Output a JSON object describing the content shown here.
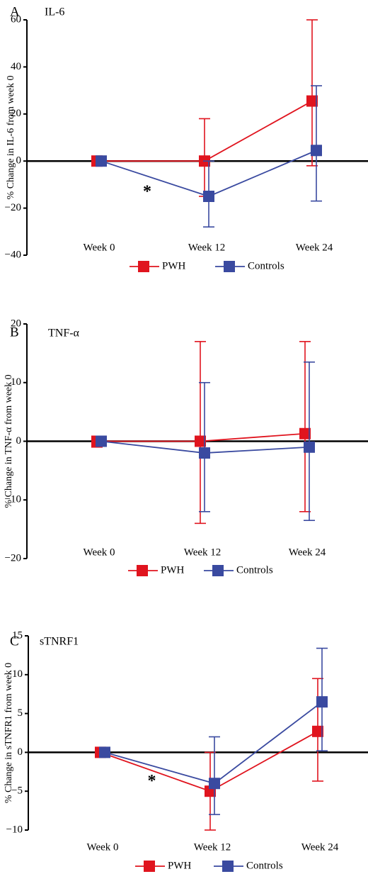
{
  "chart_data": [
    {
      "type": "line",
      "panel_letter": "A",
      "title": "IL-6",
      "ylabel": "% Change in IL-6 from week 0",
      "categories": [
        "Week 0",
        "Week 12",
        "Week 24"
      ],
      "yticks": [
        60,
        40,
        20,
        0,
        -20,
        -40
      ],
      "ylim": [
        -40,
        60
      ],
      "series": [
        {
          "name": "PWH",
          "color": "#e0141e",
          "values": [
            0,
            0,
            25.5
          ],
          "err_low": [
            0,
            -15,
            -2
          ],
          "err_high": [
            0,
            18,
            60
          ]
        },
        {
          "name": "Controls",
          "color": "#3a4aa0",
          "values": [
            0,
            -15,
            4.5
          ],
          "err_low": [
            0,
            -28,
            -17
          ],
          "err_high": [
            0,
            0,
            32
          ]
        }
      ],
      "annotation": {
        "text": "*",
        "between": [
          0,
          1
        ]
      },
      "zero_line": true,
      "legend": "bottom"
    },
    {
      "type": "line",
      "panel_letter": "B",
      "title": "TNF-α",
      "ylabel": "% Change in TNF-α from week 0",
      "categories": [
        "Week 0",
        "Week 12",
        "Week 24"
      ],
      "yticks": [
        20,
        10,
        0,
        -10,
        -20
      ],
      "ylim": [
        -20,
        20
      ],
      "series": [
        {
          "name": "PWH",
          "color": "#e0141e",
          "values": [
            0,
            0,
            1.3
          ],
          "err_low": [
            -1,
            -14,
            -12
          ],
          "err_high": [
            0,
            17,
            17
          ]
        },
        {
          "name": "Controls",
          "color": "#3a4aa0",
          "values": [
            0,
            -2,
            -1
          ],
          "err_low": [
            0,
            -12,
            -13.5
          ],
          "err_high": [
            0,
            10,
            13.5
          ]
        }
      ],
      "zero_line": true,
      "legend": "bottom"
    },
    {
      "type": "line",
      "panel_letter": "C",
      "title": "sTNRF1",
      "ylabel": "% Change in sTNFR1 from week 0",
      "categories": [
        "Week 0",
        "Week 12",
        "Week 24"
      ],
      "yticks": [
        15,
        10,
        5,
        0,
        -5,
        -10
      ],
      "ylim": [
        -10,
        15
      ],
      "series": [
        {
          "name": "PWH",
          "color": "#e0141e",
          "values": [
            0,
            -5,
            2.7
          ],
          "err_low": [
            -0.5,
            -10,
            -3.7
          ],
          "err_high": [
            0,
            0,
            9.5
          ]
        },
        {
          "name": "Controls",
          "color": "#3a4aa0",
          "values": [
            0,
            -4,
            6.5
          ],
          "err_low": [
            0,
            -8,
            0.2
          ],
          "err_high": [
            0,
            2,
            13.4
          ]
        }
      ],
      "annotation": {
        "text": "*",
        "between": [
          0,
          1
        ]
      },
      "zero_line": true,
      "legend": "bottom"
    }
  ]
}
